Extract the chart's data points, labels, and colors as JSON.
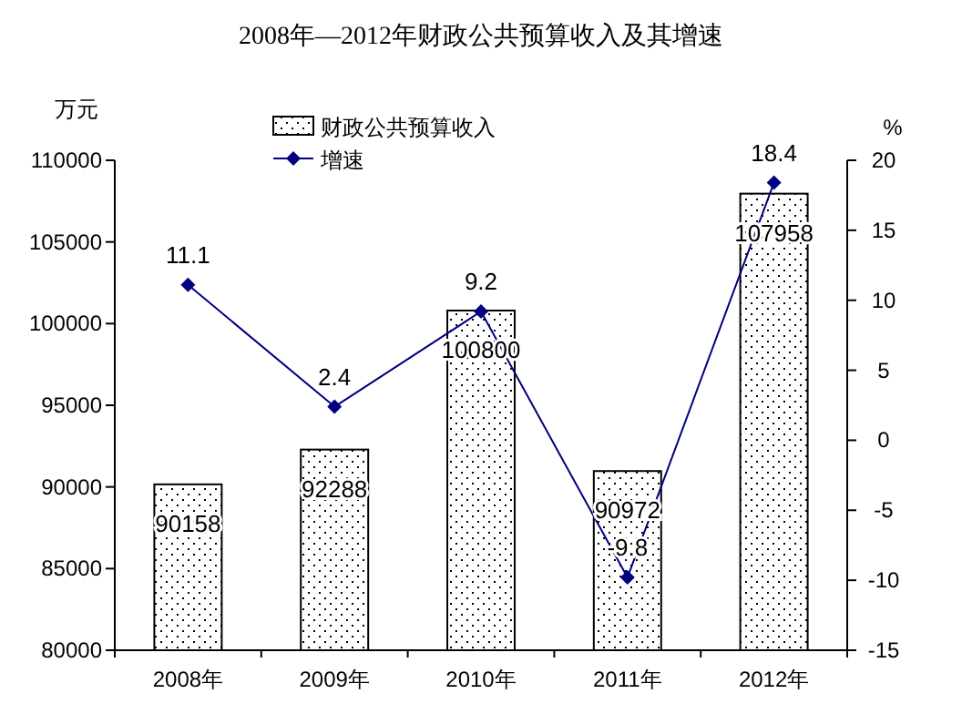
{
  "chart_data": {
    "type": "bar",
    "title": "2008年—2012年财政公共预算收入及其增速",
    "categories": [
      "2008年",
      "2009年",
      "2010年",
      "2011年",
      "2012年"
    ],
    "series": [
      {
        "name": "财政公共预算收入",
        "color": "#000000",
        "values": [
          90158,
          92288,
          100800,
          90972,
          107958
        ]
      },
      {
        "name": "增速",
        "type": "line",
        "axis": "y2",
        "color": "#000080",
        "values": [
          11.1,
          2.4,
          9.2,
          -9.8,
          18.4
        ]
      }
    ],
    "ylabel": "万元",
    "y2label": "%",
    "ylim": [
      80000,
      110000
    ],
    "yticks": [
      80000,
      85000,
      90000,
      95000,
      100000,
      105000,
      110000
    ],
    "y2lim": [
      -15,
      20
    ],
    "y2ticks": [
      -15,
      -10,
      -5,
      0,
      5,
      10,
      15,
      20
    ],
    "data_labels": true,
    "legend": "top",
    "grid": false,
    "marker": "diamond",
    "line_style": "solid"
  }
}
